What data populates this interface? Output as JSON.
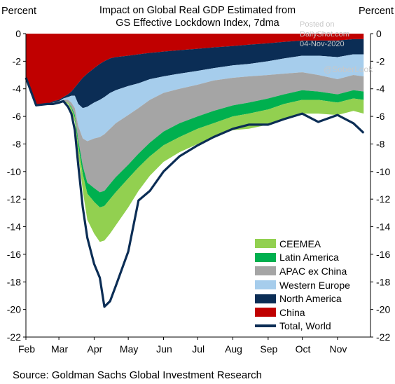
{
  "chart_data": {
    "type": "area",
    "title_lines": [
      "Impact on Global Real GDP Estimated from",
      "GS Effective Lockdown Index, 7dma"
    ],
    "ylabel_left": "Percent",
    "ylabel_right": "Percent",
    "ylim": [
      -22,
      0
    ],
    "yticks": [
      "0",
      "-2",
      "-4",
      "-6",
      "-8",
      "-10",
      "-12",
      "-14",
      "-16",
      "-18",
      "-20",
      "-22"
    ],
    "months": [
      "Feb",
      "Mar",
      "Apr",
      "May",
      "Jun",
      "Jul",
      "Aug",
      "Sep",
      "Oct",
      "Nov"
    ],
    "legend": [
      "CEEMEA",
      "Latin America",
      "APAC ex China",
      "Western Europe",
      "North America",
      "China",
      "Total, World"
    ],
    "colors": {
      "China": "#c00000",
      "North America": "#0b2d55",
      "Western Europe": "#a6cdec",
      "APAC ex China": "#a5a5a5",
      "Latin America": "#00b04f",
      "CEEMEA": "#92d050",
      "Total, World": "#0b2d55"
    },
    "x": [
      "2020-02-01",
      "2020-02-10",
      "2020-02-20",
      "2020-02-25",
      "2020-03-01",
      "2020-03-05",
      "2020-03-09",
      "2020-03-12",
      "2020-03-15",
      "2020-03-18",
      "2020-03-22",
      "2020-03-26",
      "2020-04-01",
      "2020-04-06",
      "2020-04-10",
      "2020-04-15",
      "2020-04-20",
      "2020-05-01",
      "2020-05-10",
      "2020-05-20",
      "2020-06-01",
      "2020-06-15",
      "2020-07-01",
      "2020-07-15",
      "2020-08-01",
      "2020-08-15",
      "2020-09-01",
      "2020-09-15",
      "2020-10-01",
      "2020-10-15",
      "2020-11-01",
      "2020-11-15",
      "2020-11-24"
    ],
    "series": [
      {
        "name": "China",
        "values": [
          -3.2,
          -5.2,
          -5.1,
          -4.9,
          -4.8,
          -4.6,
          -4.4,
          -4.2,
          -3.9,
          -3.6,
          -3.2,
          -2.9,
          -2.5,
          -2.2,
          -2.0,
          -1.8,
          -1.7,
          -1.6,
          -1.5,
          -1.4,
          -1.3,
          -1.2,
          -1.1,
          -1.0,
          -0.9,
          -0.8,
          -0.7,
          -0.6,
          -0.5,
          -0.5,
          -0.5,
          -0.4,
          -0.4
        ]
      },
      {
        "name": "North America",
        "values": [
          0,
          0,
          0,
          -0.1,
          -0.1,
          -0.1,
          -0.2,
          -0.3,
          -0.6,
          -1.5,
          -2.2,
          -2.4,
          -2.5,
          -2.6,
          -2.6,
          -2.5,
          -2.4,
          -2.2,
          -2.1,
          -1.9,
          -1.8,
          -1.7,
          -1.6,
          -1.5,
          -1.4,
          -1.4,
          -1.3,
          -1.2,
          -1.1,
          -1.1,
          -1.2,
          -1.1,
          -1.1
        ]
      },
      {
        "name": "Western Europe",
        "values": [
          0,
          0,
          0,
          0,
          0,
          -0.1,
          -0.2,
          -0.5,
          -0.9,
          -1.6,
          -2.2,
          -2.5,
          -2.6,
          -2.7,
          -2.7,
          -2.6,
          -2.4,
          -2.1,
          -1.8,
          -1.5,
          -1.2,
          -1.1,
          -1.0,
          -0.9,
          -0.9,
          -0.9,
          -1.0,
          -1.1,
          -1.2,
          -1.4,
          -1.6,
          -1.5,
          -1.6
        ]
      },
      {
        "name": "APAC ex China",
        "values": [
          0,
          0,
          0,
          -0.1,
          -0.1,
          -0.1,
          -0.2,
          -0.3,
          -0.5,
          -1.0,
          -2.0,
          -3.0,
          -3.6,
          -4.0,
          -4.1,
          -4.0,
          -3.9,
          -3.6,
          -3.3,
          -3.1,
          -2.8,
          -2.5,
          -2.3,
          -2.2,
          -2.0,
          -1.9,
          -1.7,
          -1.5,
          -1.3,
          -1.2,
          -1.1,
          -1.1,
          -1.1
        ]
      },
      {
        "name": "Latin America",
        "values": [
          0,
          0,
          0,
          0,
          0,
          0,
          0,
          -0.1,
          -0.2,
          -0.4,
          -0.6,
          -0.8,
          -1.0,
          -1.1,
          -1.1,
          -1.1,
          -1.1,
          -1.0,
          -1.0,
          -1.0,
          -1.0,
          -1.0,
          -0.9,
          -0.9,
          -0.8,
          -0.8,
          -0.8,
          -0.7,
          -0.7,
          -0.6,
          -0.6,
          -0.6,
          -0.6
        ]
      },
      {
        "name": "CEEMEA",
        "values": [
          0,
          0,
          0,
          0,
          0,
          0,
          -0.1,
          -0.2,
          -0.3,
          -0.6,
          -1.2,
          -1.9,
          -2.3,
          -2.5,
          -2.5,
          -2.5,
          -2.4,
          -2.1,
          -1.7,
          -1.4,
          -1.2,
          -1.1,
          -1.1,
          -1.0,
          -1.0,
          -1.1,
          -1.1,
          -1.1,
          -1.0,
          -1.0,
          -0.9,
          -0.9,
          -1.0
        ]
      }
    ],
    "total_world": [
      -3.2,
      -5.2,
      -5.1,
      -5.1,
      -5.0,
      -4.9,
      -5.3,
      -5.8,
      -7.0,
      -9.5,
      -12.6,
      -14.8,
      -16.7,
      -17.7,
      -19.8,
      -19.4,
      -18.3,
      -15.8,
      -12.1,
      -11.4,
      -10.0,
      -8.9,
      -8.1,
      -7.5,
      -6.9,
      -6.6,
      -6.6,
      -6.2,
      -5.8,
      -6.4,
      -5.9,
      -6.5,
      -7.2
    ],
    "watermark": [
      "Posted on",
      "DailyShot.com",
      "04-Nov-2020"
    ],
    "handle": "@SoberLook",
    "source": "Source: Goldman Sachs Global Investment Research"
  }
}
